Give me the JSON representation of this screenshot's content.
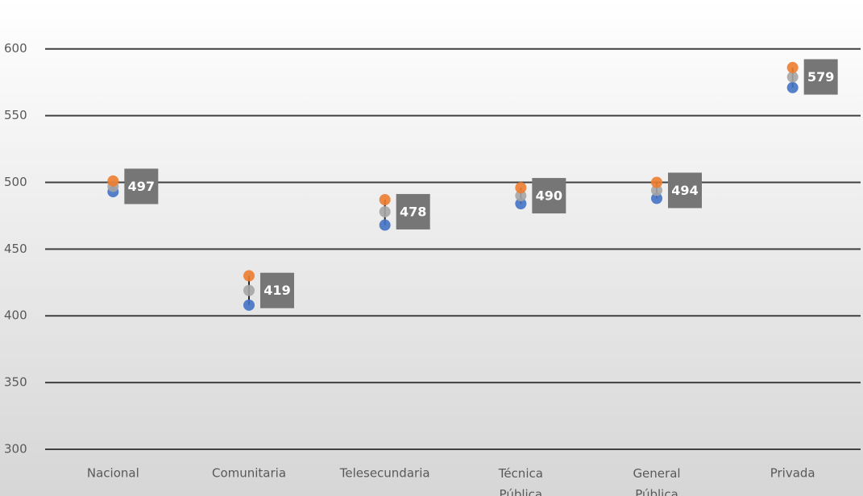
{
  "chart_data": {
    "type": "dot-range",
    "categories": [
      "Nacional",
      "Comunitaria",
      "Telesecundaria",
      "Técnica Pública",
      "General Pública",
      "Privada"
    ],
    "series": [
      {
        "color": "#4472c4",
        "values": [
          493,
          408,
          468,
          484,
          488,
          571
        ]
      },
      {
        "color": "#a5a5a5",
        "values": [
          497,
          419,
          478,
          490,
          494,
          579
        ]
      },
      {
        "color": "#ed7d31",
        "values": [
          501,
          430,
          487,
          496,
          500,
          586
        ]
      }
    ],
    "ylim": [
      300,
      630
    ],
    "yticks": [
      300,
      350,
      400,
      450,
      500,
      550,
      600
    ],
    "grid": true
  }
}
